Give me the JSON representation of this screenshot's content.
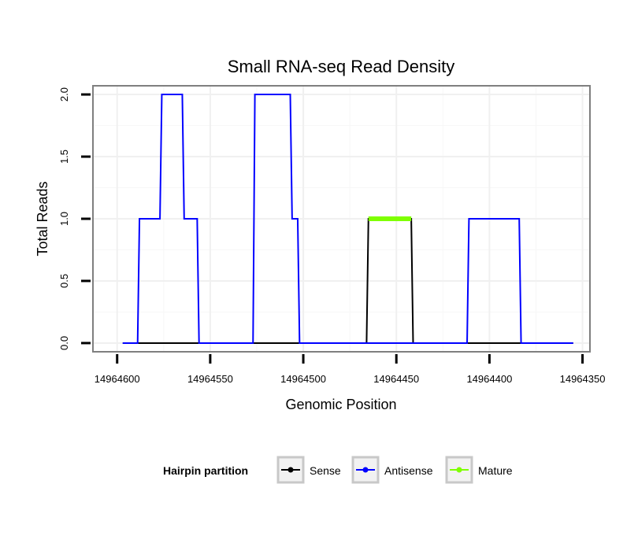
{
  "chart_data": {
    "type": "line",
    "title": "Small RNA-seq Read Density",
    "xlabel": "Genomic Position",
    "ylabel": "Total Reads",
    "xlim": [
      14964613,
      14964346
    ],
    "x_reversed": true,
    "ylim": [
      -0.07,
      2.07
    ],
    "xticks": [
      14964600,
      14964550,
      14964500,
      14964450,
      14964400,
      14964350
    ],
    "xtick_labels": [
      "14964600",
      "14964550",
      "14964500",
      "14964450",
      "14964400",
      "14964350"
    ],
    "yticks": [
      0.0,
      0.5,
      1.0,
      1.5,
      2.0
    ],
    "ytick_labels": [
      "0.0",
      "0.5",
      "1.0",
      "1.5",
      "2.0"
    ],
    "grid": true,
    "legend_position": "bottom",
    "legend_title": "Hairpin partition",
    "series": [
      {
        "name": "Sense",
        "color": "#000000",
        "x": [
          14964597,
          14964466,
          14964465,
          14964442,
          14964441,
          14964355
        ],
        "y": [
          0,
          0,
          1,
          1,
          0,
          0
        ]
      },
      {
        "name": "Antisense",
        "color": "#0000ff",
        "x": [
          14964597,
          14964589,
          14964588,
          14964577,
          14964576,
          14964565,
          14964564,
          14964557,
          14964556,
          14964527,
          14964526,
          14964507,
          14964506,
          14964503,
          14964502,
          14964412,
          14964411,
          14964384,
          14964383,
          14964355
        ],
        "y": [
          0,
          0,
          1,
          1,
          2,
          2,
          1,
          1,
          0,
          0,
          2,
          2,
          1,
          1,
          0,
          0,
          1,
          1,
          0,
          0
        ]
      },
      {
        "name": "Mature",
        "color": "#7fff00",
        "x": [
          14964465,
          14964442
        ],
        "y": [
          1,
          1
        ]
      }
    ]
  }
}
